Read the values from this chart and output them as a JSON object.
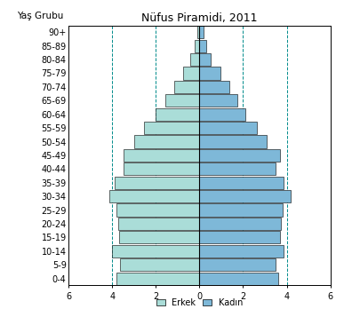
{
  "title": "Nüfus Piramidi, 2011",
  "ylabel": "Yaş Grubu",
  "xlabel_left": "Erkek",
  "xlabel_right": "Kadın",
  "age_groups": [
    "0-4",
    "5-9",
    "10-14",
    "15-19",
    "20-24",
    "25-29",
    "30-34",
    "35-39",
    "40-44",
    "45-49",
    "50-54",
    "55-59",
    "60-64",
    "65-69",
    "70-74",
    "75-79",
    "80-84",
    "85-89",
    "90+"
  ],
  "erkek": [
    3.8,
    3.65,
    4.0,
    3.7,
    3.75,
    3.8,
    4.15,
    3.9,
    3.5,
    3.5,
    3.0,
    2.55,
    2.0,
    1.55,
    1.15,
    0.75,
    0.42,
    0.22,
    0.12
  ],
  "kadin": [
    3.6,
    3.5,
    3.85,
    3.7,
    3.75,
    3.8,
    4.2,
    3.85,
    3.5,
    3.7,
    3.1,
    2.65,
    2.1,
    1.75,
    1.35,
    0.95,
    0.52,
    0.32,
    0.18
  ],
  "erkek_color": "#AADDD8",
  "kadin_color": "#7EB8D8",
  "xlim": 6,
  "grid_color": "#008B8B",
  "background_color": "#ffffff",
  "bar_edge_color": "#000000",
  "title_fontsize": 9,
  "axis_fontsize": 7.5,
  "tick_fontsize": 7,
  "legend_fontsize": 7
}
